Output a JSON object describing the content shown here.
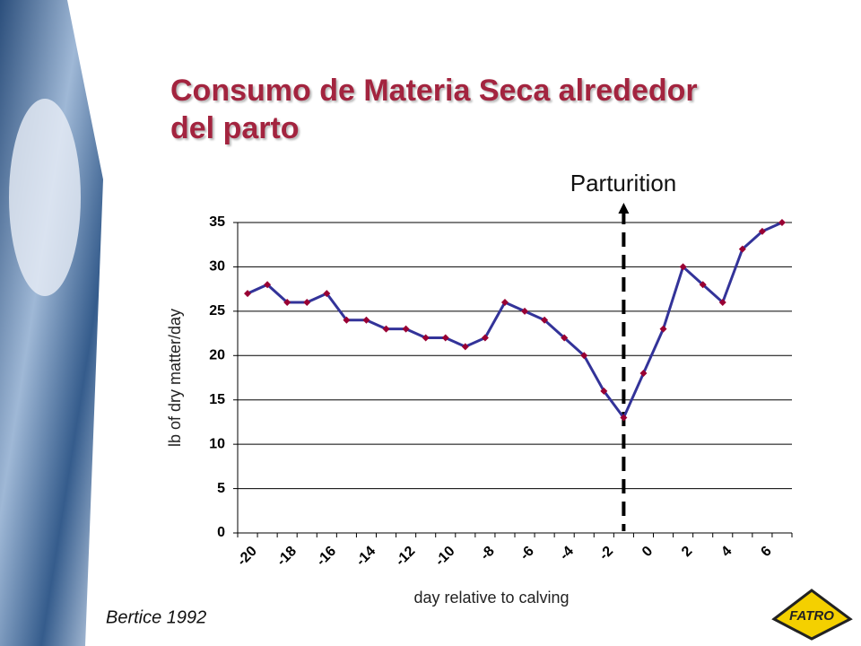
{
  "chart_data": {
    "type": "line",
    "title": "Consumo de Materia Seca alrededor del parto",
    "y_label": "lb of dry matter/day",
    "x_label": "day relative to calving",
    "annotation": "Parturition",
    "annotation_index": 19,
    "source": "Bertice 1992",
    "logo": "FATRO",
    "categories": [
      "-20",
      null,
      "-18",
      null,
      "-16",
      null,
      "-14",
      null,
      "-12",
      null,
      "-10",
      null,
      "-8",
      null,
      "-6",
      null,
      "-4",
      null,
      "-2",
      null,
      "0",
      null,
      "2",
      null,
      "4",
      null,
      "6",
      null
    ],
    "values": [
      27,
      28,
      26,
      26,
      27,
      24,
      24,
      23,
      23,
      22,
      22,
      21,
      22,
      26,
      25,
      24,
      22,
      20,
      16,
      13,
      18,
      23,
      30,
      28,
      26,
      32,
      34,
      35
    ],
    "color": "#333399",
    "marker_color": "#990033",
    "ylim": [
      0,
      35
    ],
    "yticks": [
      0,
      5,
      10,
      15,
      20,
      25,
      30,
      35
    ],
    "grid": true
  }
}
